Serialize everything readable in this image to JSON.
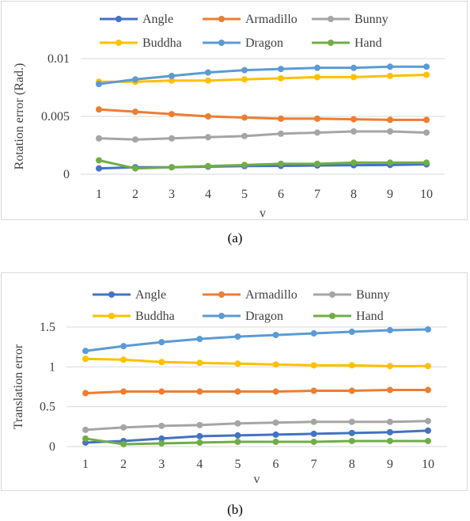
{
  "captions": [
    "(a)",
    "(b)"
  ],
  "chart_data": [
    {
      "type": "line",
      "title": "",
      "xlabel": "v",
      "ylabel": "Rotation error (Rad.)",
      "x": [
        1,
        2,
        3,
        4,
        5,
        6,
        7,
        8,
        9,
        10
      ],
      "ylim": [
        0,
        0.01
      ],
      "yticks": [
        0,
        0.005,
        0.01
      ],
      "ytick_labels": [
        "0",
        "0.005",
        "0.01"
      ],
      "grid": "horizontal",
      "legend_position": "top",
      "series": [
        {
          "name": "Angle",
          "color": "#4472c4",
          "values": [
            0.0005,
            0.0006,
            0.0006,
            0.00065,
            0.0007,
            0.00072,
            0.00075,
            0.00078,
            0.0008,
            0.00085
          ]
        },
        {
          "name": "Armadillo",
          "color": "#ed7d31",
          "values": [
            0.0056,
            0.0054,
            0.0052,
            0.005,
            0.0049,
            0.0048,
            0.0048,
            0.00475,
            0.0047,
            0.0047
          ]
        },
        {
          "name": "Bunny",
          "color": "#a5a5a5",
          "values": [
            0.0031,
            0.003,
            0.0031,
            0.0032,
            0.0033,
            0.0035,
            0.0036,
            0.0037,
            0.0037,
            0.0036
          ]
        },
        {
          "name": "Buddha",
          "color": "#ffc000",
          "values": [
            0.008,
            0.008,
            0.0081,
            0.0081,
            0.0082,
            0.0083,
            0.0084,
            0.0084,
            0.0085,
            0.0086
          ]
        },
        {
          "name": "Dragon",
          "color": "#5b9bd5",
          "values": [
            0.0078,
            0.0082,
            0.0085,
            0.0088,
            0.009,
            0.0091,
            0.0092,
            0.0092,
            0.0093,
            0.0093
          ]
        },
        {
          "name": "Hand",
          "color": "#70ad47",
          "values": [
            0.0012,
            0.0005,
            0.0006,
            0.0007,
            0.0008,
            0.0009,
            0.0009,
            0.001,
            0.001,
            0.001
          ]
        }
      ]
    },
    {
      "type": "line",
      "title": "",
      "xlabel": "v",
      "ylabel": "Translation error",
      "x": [
        1,
        2,
        3,
        4,
        5,
        6,
        7,
        8,
        9,
        10
      ],
      "ylim": [
        0,
        1.5
      ],
      "yticks": [
        0,
        0.5,
        1,
        1.5
      ],
      "ytick_labels": [
        "0",
        "0.5",
        "1",
        "1.5"
      ],
      "grid": "horizontal",
      "legend_position": "top",
      "series": [
        {
          "name": "Angle",
          "color": "#4472c4",
          "values": [
            0.05,
            0.07,
            0.1,
            0.13,
            0.14,
            0.15,
            0.16,
            0.17,
            0.18,
            0.2
          ]
        },
        {
          "name": "Armadillo",
          "color": "#ed7d31",
          "values": [
            0.67,
            0.69,
            0.69,
            0.69,
            0.69,
            0.69,
            0.7,
            0.7,
            0.71,
            0.71
          ]
        },
        {
          "name": "Bunny",
          "color": "#a5a5a5",
          "values": [
            0.21,
            0.24,
            0.26,
            0.27,
            0.29,
            0.3,
            0.31,
            0.31,
            0.31,
            0.32
          ]
        },
        {
          "name": "Buddha",
          "color": "#ffc000",
          "values": [
            1.1,
            1.09,
            1.06,
            1.05,
            1.04,
            1.03,
            1.02,
            1.02,
            1.01,
            1.01
          ]
        },
        {
          "name": "Dragon",
          "color": "#5b9bd5",
          "values": [
            1.2,
            1.26,
            1.31,
            1.35,
            1.38,
            1.4,
            1.42,
            1.44,
            1.46,
            1.47
          ]
        },
        {
          "name": "Hand",
          "color": "#70ad47",
          "values": [
            0.1,
            0.03,
            0.04,
            0.05,
            0.06,
            0.06,
            0.06,
            0.07,
            0.07,
            0.07
          ]
        }
      ]
    }
  ]
}
